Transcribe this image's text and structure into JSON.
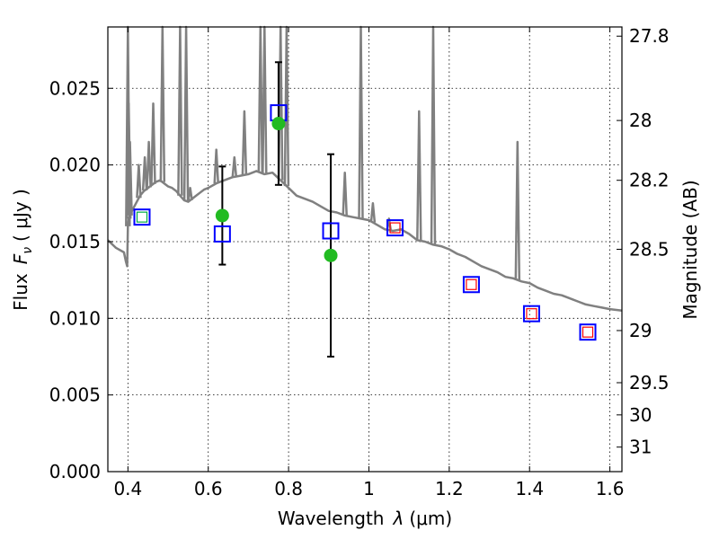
{
  "chart_data": {
    "type": "scatter",
    "xlabel_prefix": "Wavelength",
    "xlabel_symbol": "λ",
    "xlabel_unit": "(μm)",
    "ylabel_prefix": "Flux",
    "ylabel_symbol": "F",
    "ylabel_subscript": "ν",
    "ylabel_unit": "( μJy )",
    "y2label": "Magnitude (AB)",
    "xlim": [
      0.35,
      1.63
    ],
    "ylim": [
      0.0,
      0.029
    ],
    "grid": true,
    "x_ticks": [
      {
        "value": 0.4,
        "label": "0.4"
      },
      {
        "value": 0.6,
        "label": "0.6"
      },
      {
        "value": 0.8,
        "label": "0.8"
      },
      {
        "value": 1.0,
        "label": "1"
      },
      {
        "value": 1.2,
        "label": "1.2"
      },
      {
        "value": 1.4,
        "label": "1.4"
      },
      {
        "value": 1.6,
        "label": "1.6"
      }
    ],
    "y_ticks": [
      {
        "value": 0.0,
        "label": "0.000"
      },
      {
        "value": 0.005,
        "label": "0.005"
      },
      {
        "value": 0.01,
        "label": "0.010"
      },
      {
        "value": 0.015,
        "label": "0.015"
      },
      {
        "value": 0.02,
        "label": "0.020"
      },
      {
        "value": 0.025,
        "label": "0.025"
      }
    ],
    "y2_ticks": [
      {
        "flux": 0.0284,
        "label": "27.8"
      },
      {
        "flux": 0.0229,
        "label": "28"
      },
      {
        "flux": 0.019,
        "label": "28.2"
      },
      {
        "flux": 0.0145,
        "label": "28.5"
      },
      {
        "flux": 0.0092,
        "label": "29"
      },
      {
        "flux": 0.0058,
        "label": "29.5"
      },
      {
        "flux": 0.0037,
        "label": "30"
      },
      {
        "flux": 0.0016,
        "label": "31"
      }
    ],
    "series": [
      {
        "kind": "spectrum",
        "color": "#808080",
        "x": [
          0.35,
          0.37,
          0.39,
          0.395,
          0.398,
          0.4,
          0.402,
          0.405,
          0.41,
          0.42,
          0.43,
          0.44,
          0.45,
          0.46,
          0.47,
          0.48,
          0.49,
          0.5,
          0.51,
          0.52,
          0.53,
          0.54,
          0.55,
          0.56,
          0.57,
          0.58,
          0.59,
          0.6,
          0.62,
          0.64,
          0.66,
          0.68,
          0.7,
          0.72,
          0.74,
          0.76,
          0.78,
          0.8,
          0.82,
          0.84,
          0.86,
          0.88,
          0.9,
          0.92,
          0.94,
          0.96,
          0.98,
          1.0,
          1.02,
          1.04,
          1.06,
          1.08,
          1.1,
          1.12,
          1.14,
          1.16,
          1.18,
          1.2,
          1.22,
          1.24,
          1.26,
          1.28,
          1.3,
          1.32,
          1.34,
          1.36,
          1.38,
          1.4,
          1.42,
          1.44,
          1.46,
          1.48,
          1.5,
          1.52,
          1.54,
          1.56,
          1.58,
          1.6,
          1.63
        ],
        "y": [
          0.0151,
          0.0146,
          0.0143,
          0.0137,
          0.0134,
          0.016,
          0.0165,
          0.0167,
          0.017,
          0.0175,
          0.018,
          0.0183,
          0.0185,
          0.0187,
          0.0189,
          0.019,
          0.0188,
          0.0186,
          0.0185,
          0.0183,
          0.018,
          0.0177,
          0.0176,
          0.0178,
          0.018,
          0.0182,
          0.0184,
          0.0185,
          0.0188,
          0.019,
          0.0192,
          0.0193,
          0.0194,
          0.0196,
          0.0194,
          0.0195,
          0.019,
          0.0185,
          0.018,
          0.0178,
          0.0176,
          0.0173,
          0.017,
          0.0169,
          0.0167,
          0.0166,
          0.0165,
          0.0164,
          0.0161,
          0.0158,
          0.0157,
          0.0158,
          0.0155,
          0.0151,
          0.015,
          0.0148,
          0.0147,
          0.0145,
          0.0142,
          0.014,
          0.0137,
          0.0134,
          0.0132,
          0.013,
          0.0127,
          0.0126,
          0.0124,
          0.0123,
          0.012,
          0.0118,
          0.0116,
          0.0115,
          0.0113,
          0.0111,
          0.0109,
          0.0108,
          0.0107,
          0.0106,
          0.0105
        ]
      },
      {
        "kind": "spectrum-emission-lines",
        "color": "#808080",
        "lines": [
          {
            "x": 0.4,
            "peak": 0.029
          },
          {
            "x": 0.402,
            "peak": 0.024
          },
          {
            "x": 0.405,
            "peak": 0.0215
          },
          {
            "x": 0.427,
            "peak": 0.02
          },
          {
            "x": 0.442,
            "peak": 0.0205
          },
          {
            "x": 0.452,
            "peak": 0.0215
          },
          {
            "x": 0.463,
            "peak": 0.024
          },
          {
            "x": 0.486,
            "peak": 0.029
          },
          {
            "x": 0.53,
            "peak": 0.029
          },
          {
            "x": 0.545,
            "peak": 0.029
          },
          {
            "x": 0.555,
            "peak": 0.0185
          },
          {
            "x": 0.62,
            "peak": 0.021
          },
          {
            "x": 0.665,
            "peak": 0.0205
          },
          {
            "x": 0.69,
            "peak": 0.0235
          },
          {
            "x": 0.73,
            "peak": 0.029
          },
          {
            "x": 0.74,
            "peak": 0.029
          },
          {
            "x": 0.78,
            "peak": 0.029
          },
          {
            "x": 0.795,
            "peak": 0.029
          },
          {
            "x": 0.94,
            "peak": 0.0195
          },
          {
            "x": 0.98,
            "peak": 0.029
          },
          {
            "x": 1.01,
            "peak": 0.0175
          },
          {
            "x": 1.05,
            "peak": 0.0165
          },
          {
            "x": 1.125,
            "peak": 0.0235
          },
          {
            "x": 1.16,
            "peak": 0.029
          },
          {
            "x": 1.37,
            "peak": 0.0215
          }
        ]
      },
      {
        "kind": "model-photometry",
        "marker": "open-square",
        "color": "#0000ff",
        "points": [
          {
            "x": 0.435,
            "y": 0.0166
          },
          {
            "x": 0.635,
            "y": 0.0155
          },
          {
            "x": 0.775,
            "y": 0.0234
          },
          {
            "x": 0.905,
            "y": 0.0157
          },
          {
            "x": 1.065,
            "y": 0.0159
          },
          {
            "x": 1.255,
            "y": 0.0122
          },
          {
            "x": 1.405,
            "y": 0.0103
          },
          {
            "x": 1.545,
            "y": 0.0091
          }
        ]
      },
      {
        "kind": "inner-squares",
        "marker": "small-open-square",
        "points": [
          {
            "x": 0.435,
            "y": 0.0166,
            "color": "#00aa44"
          },
          {
            "x": 1.065,
            "y": 0.0159,
            "color": "#ff0000"
          },
          {
            "x": 1.255,
            "y": 0.0122,
            "color": "#ff0000"
          },
          {
            "x": 1.405,
            "y": 0.0103,
            "color": "#ff0000"
          },
          {
            "x": 1.545,
            "y": 0.0091,
            "color": "#ff0000"
          }
        ]
      },
      {
        "kind": "observed-photometry",
        "marker": "filled-circle",
        "color": "#22bb22",
        "points": [
          {
            "x": 0.635,
            "y": 0.0167,
            "ylow": 0.0135,
            "yhigh": 0.0199
          },
          {
            "x": 0.775,
            "y": 0.0227,
            "ylow": 0.0187,
            "yhigh": 0.0267
          },
          {
            "x": 0.905,
            "y": 0.0141,
            "ylow": 0.0075,
            "yhigh": 0.0207
          }
        ]
      }
    ]
  }
}
